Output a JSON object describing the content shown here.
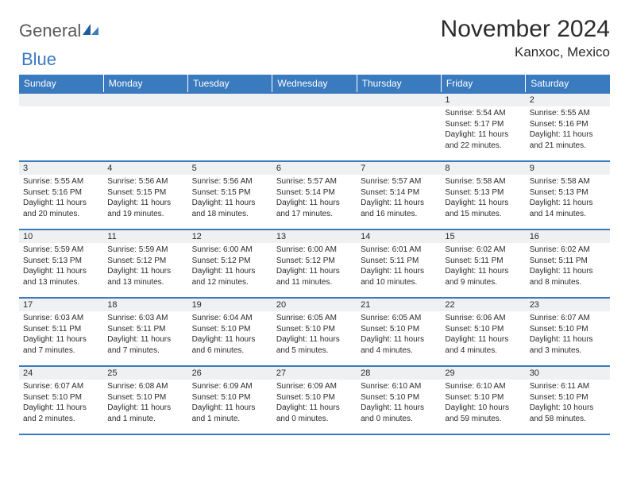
{
  "logo": {
    "text1": "General",
    "text2": "Blue"
  },
  "title": "November 2024",
  "location": "Kanxoc, Mexico",
  "colors": {
    "header_bg": "#3a7abf",
    "header_text": "#ffffff",
    "daynum_bg": "#eef0f2",
    "border": "#3a7abf",
    "text": "#2b2b2b"
  },
  "weekdays": [
    "Sunday",
    "Monday",
    "Tuesday",
    "Wednesday",
    "Thursday",
    "Friday",
    "Saturday"
  ],
  "weeks": [
    [
      {
        "num": "",
        "sunrise": "",
        "sunset": "",
        "daylight": ""
      },
      {
        "num": "",
        "sunrise": "",
        "sunset": "",
        "daylight": ""
      },
      {
        "num": "",
        "sunrise": "",
        "sunset": "",
        "daylight": ""
      },
      {
        "num": "",
        "sunrise": "",
        "sunset": "",
        "daylight": ""
      },
      {
        "num": "",
        "sunrise": "",
        "sunset": "",
        "daylight": ""
      },
      {
        "num": "1",
        "sunrise": "Sunrise: 5:54 AM",
        "sunset": "Sunset: 5:17 PM",
        "daylight": "Daylight: 11 hours and 22 minutes."
      },
      {
        "num": "2",
        "sunrise": "Sunrise: 5:55 AM",
        "sunset": "Sunset: 5:16 PM",
        "daylight": "Daylight: 11 hours and 21 minutes."
      }
    ],
    [
      {
        "num": "3",
        "sunrise": "Sunrise: 5:55 AM",
        "sunset": "Sunset: 5:16 PM",
        "daylight": "Daylight: 11 hours and 20 minutes."
      },
      {
        "num": "4",
        "sunrise": "Sunrise: 5:56 AM",
        "sunset": "Sunset: 5:15 PM",
        "daylight": "Daylight: 11 hours and 19 minutes."
      },
      {
        "num": "5",
        "sunrise": "Sunrise: 5:56 AM",
        "sunset": "Sunset: 5:15 PM",
        "daylight": "Daylight: 11 hours and 18 minutes."
      },
      {
        "num": "6",
        "sunrise": "Sunrise: 5:57 AM",
        "sunset": "Sunset: 5:14 PM",
        "daylight": "Daylight: 11 hours and 17 minutes."
      },
      {
        "num": "7",
        "sunrise": "Sunrise: 5:57 AM",
        "sunset": "Sunset: 5:14 PM",
        "daylight": "Daylight: 11 hours and 16 minutes."
      },
      {
        "num": "8",
        "sunrise": "Sunrise: 5:58 AM",
        "sunset": "Sunset: 5:13 PM",
        "daylight": "Daylight: 11 hours and 15 minutes."
      },
      {
        "num": "9",
        "sunrise": "Sunrise: 5:58 AM",
        "sunset": "Sunset: 5:13 PM",
        "daylight": "Daylight: 11 hours and 14 minutes."
      }
    ],
    [
      {
        "num": "10",
        "sunrise": "Sunrise: 5:59 AM",
        "sunset": "Sunset: 5:13 PM",
        "daylight": "Daylight: 11 hours and 13 minutes."
      },
      {
        "num": "11",
        "sunrise": "Sunrise: 5:59 AM",
        "sunset": "Sunset: 5:12 PM",
        "daylight": "Daylight: 11 hours and 13 minutes."
      },
      {
        "num": "12",
        "sunrise": "Sunrise: 6:00 AM",
        "sunset": "Sunset: 5:12 PM",
        "daylight": "Daylight: 11 hours and 12 minutes."
      },
      {
        "num": "13",
        "sunrise": "Sunrise: 6:00 AM",
        "sunset": "Sunset: 5:12 PM",
        "daylight": "Daylight: 11 hours and 11 minutes."
      },
      {
        "num": "14",
        "sunrise": "Sunrise: 6:01 AM",
        "sunset": "Sunset: 5:11 PM",
        "daylight": "Daylight: 11 hours and 10 minutes."
      },
      {
        "num": "15",
        "sunrise": "Sunrise: 6:02 AM",
        "sunset": "Sunset: 5:11 PM",
        "daylight": "Daylight: 11 hours and 9 minutes."
      },
      {
        "num": "16",
        "sunrise": "Sunrise: 6:02 AM",
        "sunset": "Sunset: 5:11 PM",
        "daylight": "Daylight: 11 hours and 8 minutes."
      }
    ],
    [
      {
        "num": "17",
        "sunrise": "Sunrise: 6:03 AM",
        "sunset": "Sunset: 5:11 PM",
        "daylight": "Daylight: 11 hours and 7 minutes."
      },
      {
        "num": "18",
        "sunrise": "Sunrise: 6:03 AM",
        "sunset": "Sunset: 5:11 PM",
        "daylight": "Daylight: 11 hours and 7 minutes."
      },
      {
        "num": "19",
        "sunrise": "Sunrise: 6:04 AM",
        "sunset": "Sunset: 5:10 PM",
        "daylight": "Daylight: 11 hours and 6 minutes."
      },
      {
        "num": "20",
        "sunrise": "Sunrise: 6:05 AM",
        "sunset": "Sunset: 5:10 PM",
        "daylight": "Daylight: 11 hours and 5 minutes."
      },
      {
        "num": "21",
        "sunrise": "Sunrise: 6:05 AM",
        "sunset": "Sunset: 5:10 PM",
        "daylight": "Daylight: 11 hours and 4 minutes."
      },
      {
        "num": "22",
        "sunrise": "Sunrise: 6:06 AM",
        "sunset": "Sunset: 5:10 PM",
        "daylight": "Daylight: 11 hours and 4 minutes."
      },
      {
        "num": "23",
        "sunrise": "Sunrise: 6:07 AM",
        "sunset": "Sunset: 5:10 PM",
        "daylight": "Daylight: 11 hours and 3 minutes."
      }
    ],
    [
      {
        "num": "24",
        "sunrise": "Sunrise: 6:07 AM",
        "sunset": "Sunset: 5:10 PM",
        "daylight": "Daylight: 11 hours and 2 minutes."
      },
      {
        "num": "25",
        "sunrise": "Sunrise: 6:08 AM",
        "sunset": "Sunset: 5:10 PM",
        "daylight": "Daylight: 11 hours and 1 minute."
      },
      {
        "num": "26",
        "sunrise": "Sunrise: 6:09 AM",
        "sunset": "Sunset: 5:10 PM",
        "daylight": "Daylight: 11 hours and 1 minute."
      },
      {
        "num": "27",
        "sunrise": "Sunrise: 6:09 AM",
        "sunset": "Sunset: 5:10 PM",
        "daylight": "Daylight: 11 hours and 0 minutes."
      },
      {
        "num": "28",
        "sunrise": "Sunrise: 6:10 AM",
        "sunset": "Sunset: 5:10 PM",
        "daylight": "Daylight: 11 hours and 0 minutes."
      },
      {
        "num": "29",
        "sunrise": "Sunrise: 6:10 AM",
        "sunset": "Sunset: 5:10 PM",
        "daylight": "Daylight: 10 hours and 59 minutes."
      },
      {
        "num": "30",
        "sunrise": "Sunrise: 6:11 AM",
        "sunset": "Sunset: 5:10 PM",
        "daylight": "Daylight: 10 hours and 58 minutes."
      }
    ]
  ]
}
